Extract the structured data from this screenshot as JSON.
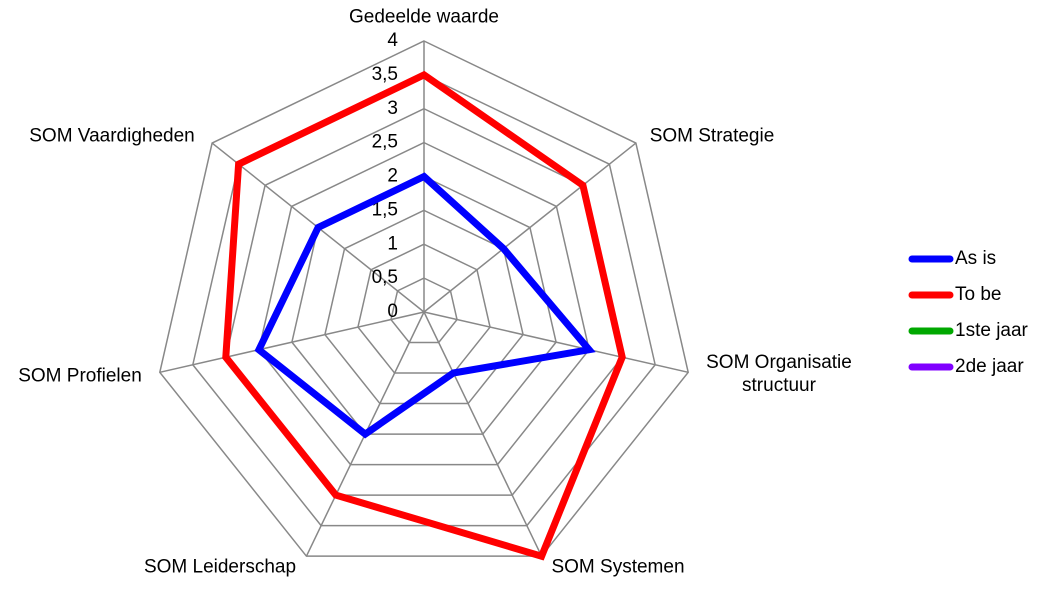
{
  "chart_data": {
    "type": "radar",
    "categories": [
      "Gedeelde waarde",
      "SOM Strategie",
      "SOM Organisatie structuur",
      "SOM Systemen",
      "SOM Leiderschap",
      "SOM Profielen",
      "SOM Vaardigheden"
    ],
    "series": [
      {
        "name": "As is",
        "color": "#0000ff",
        "values": [
          2,
          1.5,
          2.5,
          1,
          2,
          2.5,
          2
        ]
      },
      {
        "name": "To be",
        "color": "#ff0000",
        "values": [
          3.5,
          3,
          3,
          4,
          3,
          3,
          3.5
        ]
      },
      {
        "name": "1ste jaar",
        "color": "#00a800",
        "values": [
          null,
          null,
          null,
          null,
          null,
          null,
          null
        ]
      },
      {
        "name": "2de jaar",
        "color": "#8000ff",
        "values": [
          null,
          null,
          null,
          null,
          null,
          null,
          null
        ]
      }
    ],
    "ylim": [
      0,
      4
    ],
    "yticks": [
      0,
      {
        "value": 0.5,
        "label": "0,5"
      },
      1,
      {
        "value": 1.5,
        "label": "1,5"
      },
      2,
      {
        "value": 2.5,
        "label": "2,5"
      },
      3,
      {
        "value": 3.5,
        "label": "3,5"
      },
      4
    ],
    "grid": true,
    "legend": "right"
  }
}
